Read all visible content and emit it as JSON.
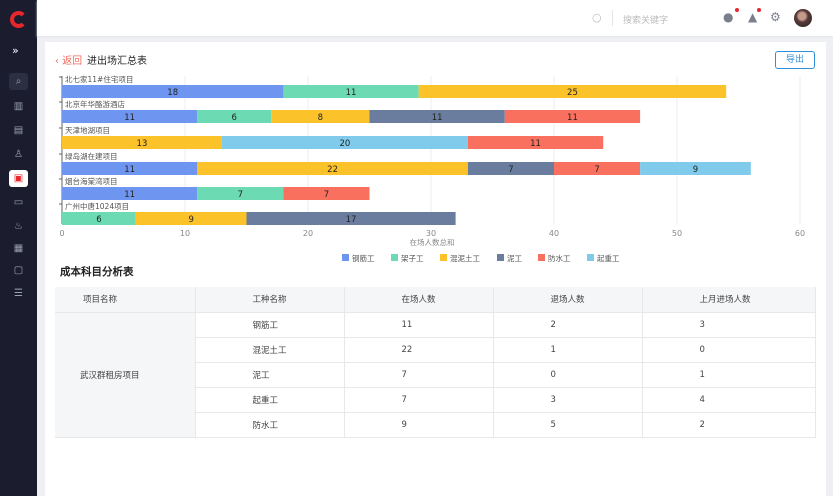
{
  "header": {
    "search_placeholder": "搜索关键字"
  },
  "page": {
    "back": "返回",
    "title": "进出场汇总表",
    "export": "导出"
  },
  "chart_data": {
    "type": "bar",
    "orientation": "horizontal",
    "stacked": true,
    "xlabel": "在场人数总和",
    "xlim": [
      0,
      60
    ],
    "xticks": [
      0,
      10,
      20,
      30,
      40,
      50,
      60
    ],
    "grid": true,
    "legend_position": "bottom",
    "series": [
      {
        "name": "钢筋工",
        "color": "#6e95f0"
      },
      {
        "name": "架子工",
        "color": "#6cdab3"
      },
      {
        "name": "混泥土工",
        "color": "#fbc229"
      },
      {
        "name": "泥工",
        "color": "#6a7d9e"
      },
      {
        "name": "防水工",
        "color": "#f9705f"
      },
      {
        "name": "起重工",
        "color": "#80cbec"
      }
    ],
    "categories": [
      {
        "name": "北七家11#住宅项目",
        "segments": [
          [
            "钢筋工",
            18
          ],
          [
            "架子工",
            11
          ],
          [
            "混泥土工",
            25
          ]
        ]
      },
      {
        "name": "北京年华酪游酒店",
        "segments": [
          [
            "钢筋工",
            11
          ],
          [
            "架子工",
            6
          ],
          [
            "混泥土工",
            8
          ],
          [
            "泥工",
            11
          ],
          [
            "防水工",
            11
          ]
        ]
      },
      {
        "name": "天津地湖项目",
        "segments": [
          [
            "混泥土工",
            13
          ],
          [
            "起重工",
            20
          ],
          [
            "防水工",
            11
          ]
        ]
      },
      {
        "name": "绿岛湖在建项目",
        "segments": [
          [
            "钢筋工",
            11
          ],
          [
            "混泥土工",
            22
          ],
          [
            "泥工",
            7
          ],
          [
            "防水工",
            7
          ],
          [
            "起重工",
            9
          ]
        ]
      },
      {
        "name": "烟台海棠湾项目",
        "segments": [
          [
            "钢筋工",
            11
          ],
          [
            "架子工",
            7
          ],
          [
            "防水工",
            7
          ]
        ]
      },
      {
        "name": "广州中唐1024项目",
        "segments": [
          [
            "架子工",
            6
          ],
          [
            "混泥土工",
            9
          ],
          [
            "泥工",
            17
          ]
        ]
      }
    ]
  },
  "table": {
    "title": "成本科目分析表",
    "headers": [
      "项目名称",
      "工种名称",
      "在场人数",
      "退场人数",
      "上月进场人数"
    ],
    "project": "武汉群租房项目",
    "rows": [
      [
        "钢筋工",
        "11",
        "2",
        "3"
      ],
      [
        "混泥土工",
        "22",
        "1",
        "0"
      ],
      [
        "泥工",
        "7",
        "0",
        "1"
      ],
      [
        "起重工",
        "7",
        "3",
        "4"
      ],
      [
        "防水工",
        "9",
        "5",
        "2"
      ]
    ]
  }
}
